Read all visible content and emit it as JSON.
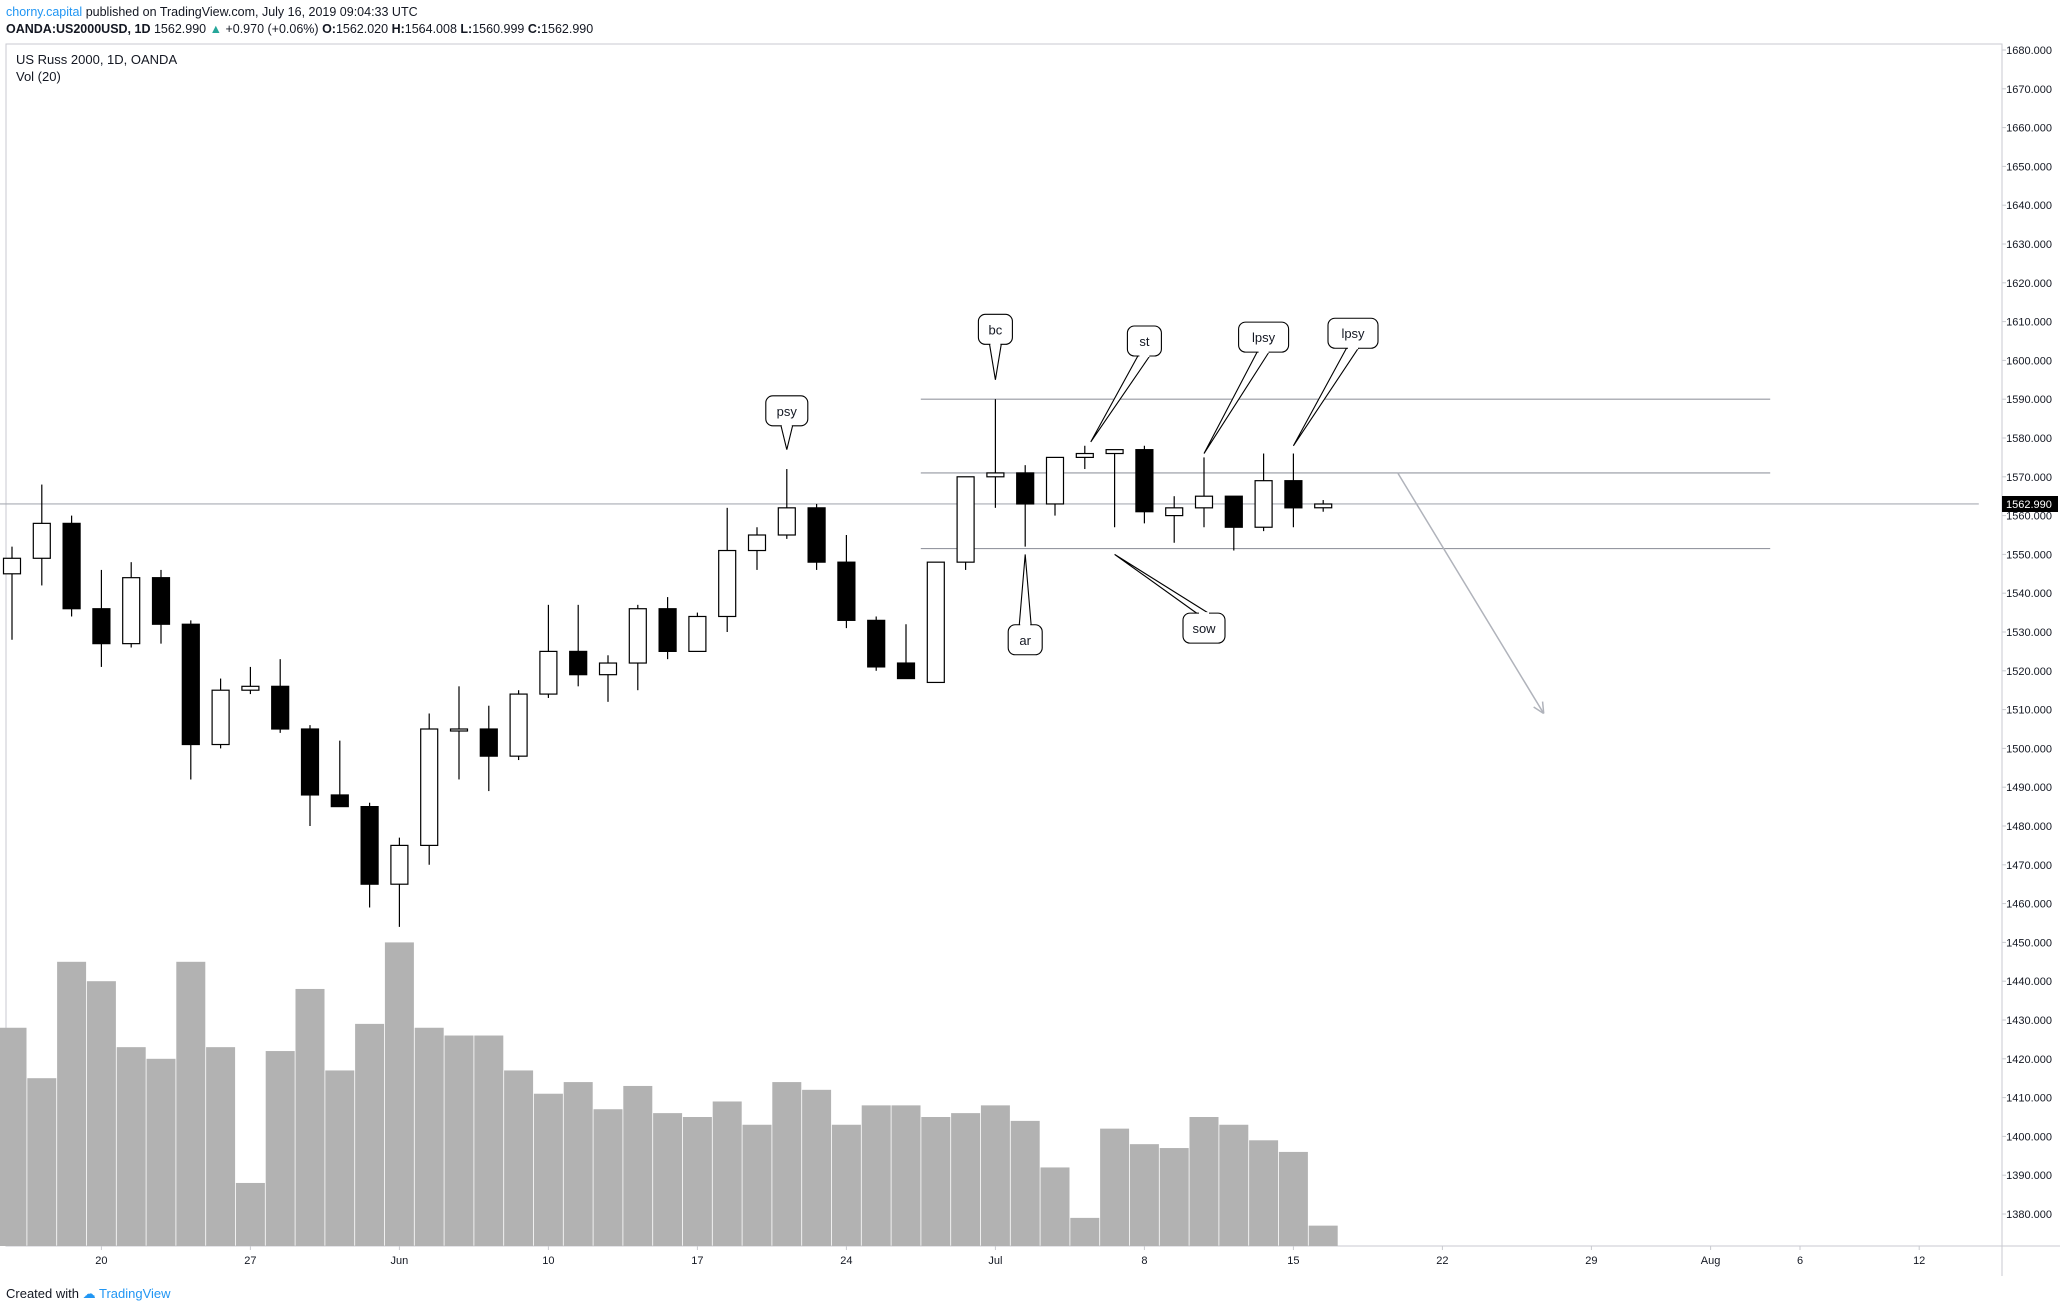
{
  "header": {
    "author": "chorny.capital",
    "published_text": "published on TradingView.com, July 16, 2019 09:04:33 UTC",
    "symbol": "OANDA:US2000USD, 1D",
    "last_price": "1562.990",
    "change": "+0.970 (+0.06%)",
    "open_label": "O:",
    "open": "1562.020",
    "high_label": "H:",
    "high": "1564.008",
    "low_label": "L:",
    "low": "1560.999",
    "close_label": "C:",
    "close": "1562.990"
  },
  "legend": {
    "title": "US Russ 2000, 1D, OANDA",
    "volume": "Vol (20)"
  },
  "price_badge": "1562.990",
  "footer": {
    "created_with": "Created with",
    "brand": "TradingView"
  },
  "colors": {
    "up_fill": "#ffffff",
    "down_fill": "#000000",
    "volume": "#b2b2b2",
    "level_line": "#9598a1",
    "arrow": "#b0b3bb",
    "badge": "#000000"
  },
  "chart_data": {
    "type": "candlestick",
    "title": "US Russ 2000, 1D, OANDA",
    "y_axis": {
      "ticks": [
        "1680.000",
        "1670.000",
        "1660.000",
        "1650.000",
        "1640.000",
        "1630.000",
        "1620.000",
        "1610.000",
        "1600.000",
        "1590.000",
        "1580.000",
        "1570.000",
        "1560.000",
        "1550.000",
        "1540.000",
        "1530.000",
        "1520.000",
        "1510.000",
        "1500.000",
        "1490.000",
        "1480.000",
        "1470.000",
        "1460.000",
        "1450.000",
        "1440.000",
        "1430.000",
        "1420.000",
        "1410.000",
        "1400.000",
        "1390.000",
        "1380.000"
      ],
      "range": [
        1376,
        1682
      ]
    },
    "x_axis": {
      "ticks": [
        {
          "label": "20",
          "index": 3
        },
        {
          "label": "27",
          "index": 8
        },
        {
          "label": "Jun",
          "index": 13
        },
        {
          "label": "10",
          "index": 18
        },
        {
          "label": "17",
          "index": 23
        },
        {
          "label": "24",
          "index": 28
        },
        {
          "label": "Jul",
          "index": 33
        },
        {
          "label": "8",
          "index": 38
        },
        {
          "label": "15",
          "index": 43
        },
        {
          "label": "22",
          "index": 48
        },
        {
          "label": "29",
          "index": 53
        },
        {
          "label": "Aug",
          "index": 57
        },
        {
          "label": "6",
          "index": 60
        },
        {
          "label": "12",
          "index": 64
        }
      ]
    },
    "candles": [
      {
        "o": 1545,
        "h": 1552,
        "l": 1528,
        "c": 1549
      },
      {
        "o": 1549,
        "h": 1568,
        "l": 1542,
        "c": 1558
      },
      {
        "o": 1558,
        "h": 1560,
        "l": 1534,
        "c": 1536
      },
      {
        "o": 1536,
        "h": 1546,
        "l": 1521,
        "c": 1527
      },
      {
        "o": 1527,
        "h": 1548,
        "l": 1526,
        "c": 1544
      },
      {
        "o": 1544,
        "h": 1546,
        "l": 1527,
        "c": 1532
      },
      {
        "o": 1532,
        "h": 1533,
        "l": 1492,
        "c": 1501
      },
      {
        "o": 1501,
        "h": 1518,
        "l": 1500,
        "c": 1515
      },
      {
        "o": 1515,
        "h": 1521,
        "l": 1514,
        "c": 1516
      },
      {
        "o": 1516,
        "h": 1523,
        "l": 1504,
        "c": 1505
      },
      {
        "o": 1505,
        "h": 1506,
        "l": 1480,
        "c": 1488
      },
      {
        "o": 1488,
        "h": 1502,
        "l": 1485,
        "c": 1485
      },
      {
        "o": 1485,
        "h": 1486,
        "l": 1459,
        "c": 1465
      },
      {
        "o": 1465,
        "h": 1477,
        "l": 1454,
        "c": 1475
      },
      {
        "o": 1475,
        "h": 1509,
        "l": 1470,
        "c": 1505
      },
      {
        "o": 1505,
        "h": 1516,
        "l": 1492,
        "c": 1505
      },
      {
        "o": 1505,
        "h": 1511,
        "l": 1489,
        "c": 1498
      },
      {
        "o": 1498,
        "h": 1515,
        "l": 1497,
        "c": 1514
      },
      {
        "o": 1514,
        "h": 1537,
        "l": 1513,
        "c": 1525
      },
      {
        "o": 1525,
        "h": 1537,
        "l": 1516,
        "c": 1519
      },
      {
        "o": 1519,
        "h": 1524,
        "l": 1512,
        "c": 1522
      },
      {
        "o": 1522,
        "h": 1537,
        "l": 1515,
        "c": 1536
      },
      {
        "o": 1536,
        "h": 1539,
        "l": 1523,
        "c": 1525
      },
      {
        "o": 1525,
        "h": 1535,
        "l": 1525,
        "c": 1534
      },
      {
        "o": 1534,
        "h": 1562,
        "l": 1530,
        "c": 1551
      },
      {
        "o": 1551,
        "h": 1557,
        "l": 1546,
        "c": 1555
      },
      {
        "o": 1555,
        "h": 1572,
        "l": 1554,
        "c": 1562
      },
      {
        "o": 1562,
        "h": 1563,
        "l": 1546,
        "c": 1548
      },
      {
        "o": 1548,
        "h": 1555,
        "l": 1531,
        "c": 1533
      },
      {
        "o": 1533,
        "h": 1534,
        "l": 1520,
        "c": 1521
      },
      {
        "o": 1522,
        "h": 1532,
        "l": 1518,
        "c": 1518
      },
      {
        "o": 1517,
        "h": 1548,
        "l": 1517,
        "c": 1548
      },
      {
        "o": 1548,
        "h": 1570,
        "l": 1546,
        "c": 1570
      },
      {
        "o": 1570,
        "h": 1590,
        "l": 1562,
        "c": 1571
      },
      {
        "o": 1571,
        "h": 1573,
        "l": 1552,
        "c": 1563
      },
      {
        "o": 1563,
        "h": 1575,
        "l": 1560,
        "c": 1575
      },
      {
        "o": 1575,
        "h": 1578,
        "l": 1572,
        "c": 1576
      },
      {
        "o": 1576,
        "h": 1577,
        "l": 1557,
        "c": 1577
      },
      {
        "o": 1577,
        "h": 1578,
        "l": 1558,
        "c": 1561
      },
      {
        "o": 1560,
        "h": 1565,
        "l": 1553,
        "c": 1562
      },
      {
        "o": 1562,
        "h": 1575,
        "l": 1557,
        "c": 1565
      },
      {
        "o": 1565,
        "h": 1565,
        "l": 1551,
        "c": 1557
      },
      {
        "o": 1557,
        "h": 1576,
        "l": 1556,
        "c": 1569
      },
      {
        "o": 1569,
        "h": 1576,
        "l": 1557,
        "c": 1562
      },
      {
        "o": 1562.02,
        "h": 1564.008,
        "l": 1560.999,
        "c": 1562.99
      }
    ],
    "volume": {
      "name": "Vol (20)",
      "values": [
        1428,
        1415,
        1445,
        1440,
        1423,
        1420,
        1445,
        1423,
        1388,
        1422,
        1438,
        1417,
        1429,
        1450,
        1428,
        1426,
        1426,
        1417,
        1411,
        1414,
        1407,
        1413,
        1406,
        1405,
        1409,
        1403,
        1414,
        1412,
        1403,
        1408,
        1408,
        1405,
        1406,
        1408,
        1404,
        1392,
        1379,
        1402,
        1398,
        1397,
        1405,
        1403,
        1399,
        1396,
        1377
      ]
    },
    "levels": [
      {
        "price": 1590,
        "from_index": 31,
        "to_index": 59
      },
      {
        "price": 1571,
        "from_index": 31,
        "to_index": 59
      },
      {
        "price": 1551.5,
        "from_index": 31,
        "to_index": 59
      },
      {
        "price": 1563,
        "from_index": 0,
        "to_index": 66
      }
    ],
    "arrow": {
      "from_index": 46.5,
      "from_price": 1571,
      "to_index": 51.4,
      "to_price": 1509
    },
    "annotations": [
      {
        "text": "psy",
        "index": 26,
        "box_price": 1587,
        "tip_index": 26,
        "tip_price": 1577
      },
      {
        "text": "bc",
        "index": 33,
        "box_price": 1608,
        "tip_index": 33,
        "tip_price": 1595
      },
      {
        "text": "st",
        "index": 38,
        "box_price": 1605,
        "tip_index": 36.2,
        "tip_price": 1579
      },
      {
        "text": "lpsy",
        "index": 42,
        "box_price": 1606,
        "tip_index": 40,
        "tip_price": 1576
      },
      {
        "text": "lpsy",
        "index": 45,
        "box_price": 1607,
        "tip_index": 43,
        "tip_price": 1578
      },
      {
        "text": "ar",
        "index": 34,
        "box_price": 1528,
        "tip_index": 34,
        "tip_price": 1550
      },
      {
        "text": "sow",
        "index": 40,
        "box_price": 1531,
        "tip_index": 37,
        "tip_price": 1550
      }
    ]
  }
}
